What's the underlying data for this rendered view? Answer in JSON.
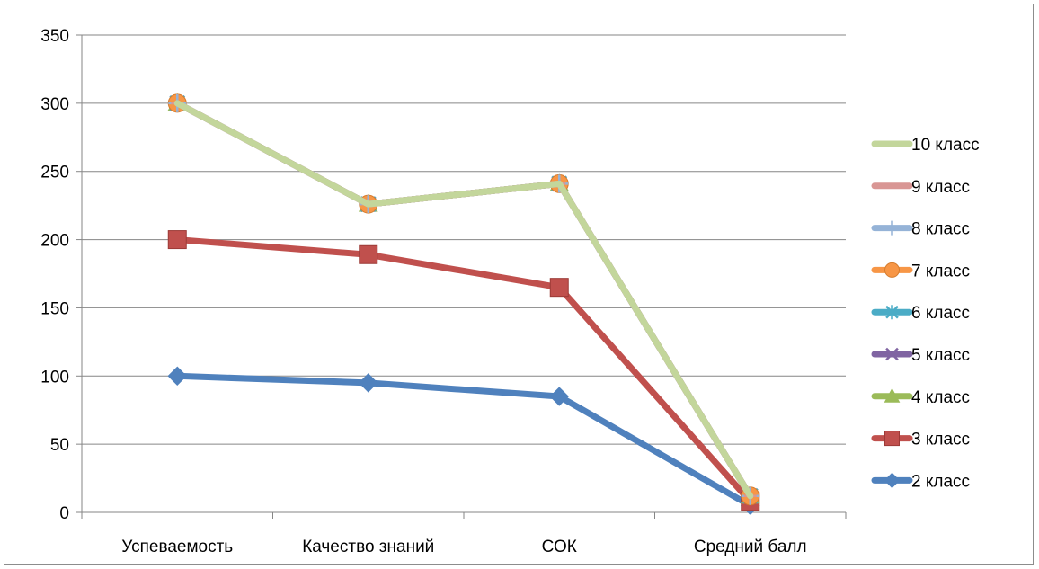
{
  "chart_data": {
    "type": "line",
    "title": "",
    "xlabel": "",
    "ylabel": "",
    "ylim": [
      0,
      350
    ],
    "yticks": [
      0,
      50,
      100,
      150,
      200,
      250,
      300,
      350
    ],
    "grid": true,
    "legend_position": "right",
    "categories": [
      "Успеваемость",
      "Качество знаний",
      "СОК",
      "Средний балл"
    ],
    "series": [
      {
        "name": "2 класс",
        "values": [
          100,
          95,
          85,
          5
        ],
        "color": "#4f81bd",
        "marker": "diamond"
      },
      {
        "name": "3 класс",
        "values": [
          200,
          189,
          165,
          8
        ],
        "color": "#c0504d",
        "marker": "square"
      },
      {
        "name": "4 класс",
        "values": [
          300,
          226,
          241,
          12
        ],
        "color": "#9bbb59",
        "marker": "triangle"
      },
      {
        "name": "5 класс",
        "values": [
          300,
          226,
          241,
          12
        ],
        "color": "#8064a2",
        "marker": "x"
      },
      {
        "name": "6 класс",
        "values": [
          300,
          226,
          241,
          12
        ],
        "color": "#4bacc6",
        "marker": "star"
      },
      {
        "name": "7 класс",
        "values": [
          300,
          226,
          241,
          12
        ],
        "color": "#f79646",
        "marker": "circle"
      },
      {
        "name": "8 класс",
        "values": [
          300,
          226,
          241,
          12
        ],
        "color": "#95b3d7",
        "marker": "plus"
      },
      {
        "name": "9 класс",
        "values": [
          300,
          226,
          241,
          12
        ],
        "color": "#d99694",
        "marker": "dash"
      },
      {
        "name": "10 класс",
        "values": [
          300,
          226,
          241,
          12
        ],
        "color": "#c3d69b",
        "marker": "none"
      }
    ],
    "legend_order": [
      "10 класс",
      "9 класс",
      "8 класс",
      "7 класс",
      "6 класс",
      "5 класс",
      "4 класс",
      "3 класс",
      "2 класс"
    ]
  }
}
